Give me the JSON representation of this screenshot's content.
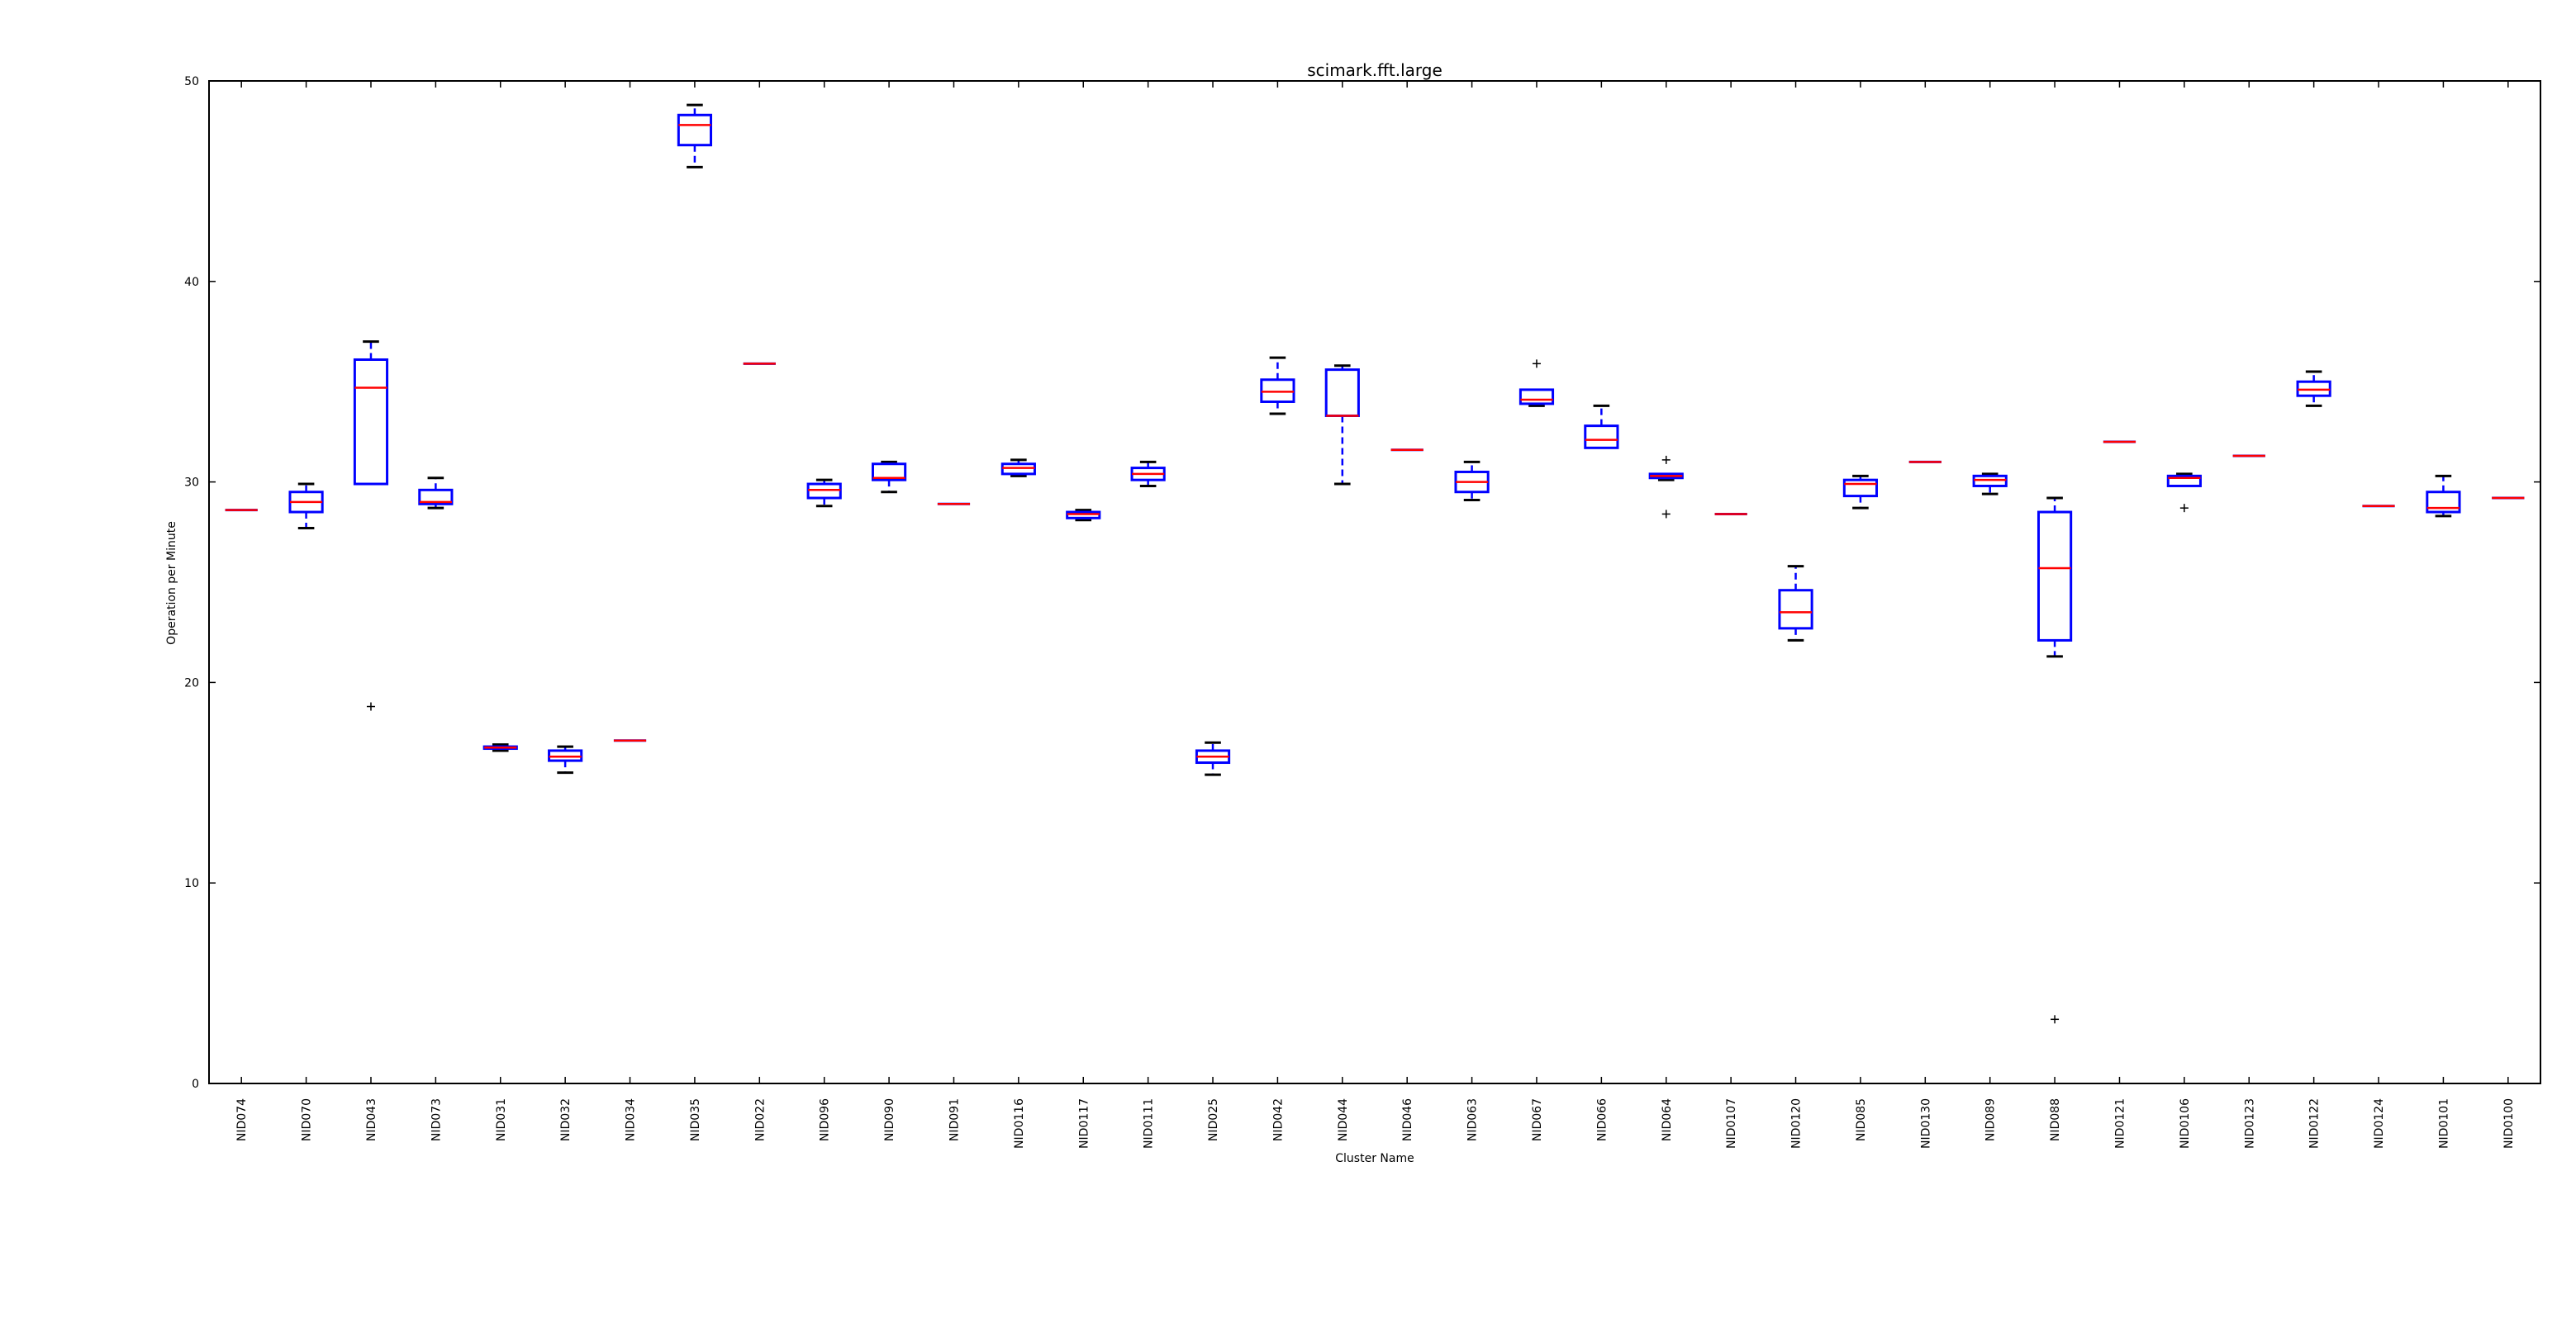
{
  "chart_data": {
    "type": "box",
    "title": "scimark.fft.large",
    "xlabel": "Cluster Name",
    "ylabel": "Operation per Minute",
    "ylim": [
      0,
      50
    ],
    "yticks": [
      0,
      10,
      20,
      30,
      40,
      50
    ],
    "grid": false,
    "colors": {
      "box": "#0000ff",
      "median": "#ff0000",
      "whisker": "#000000",
      "outlier": "#000000"
    },
    "boxes": [
      {
        "name": "NID074",
        "min": 28.6,
        "q1": 28.6,
        "median": 28.6,
        "q3": 28.6,
        "max": 28.6,
        "outliers": []
      },
      {
        "name": "NID070",
        "min": 27.7,
        "q1": 28.5,
        "median": 29.0,
        "q3": 29.5,
        "max": 29.9,
        "outliers": []
      },
      {
        "name": "NID043",
        "min": 29.9,
        "q1": 29.9,
        "median": 34.7,
        "q3": 36.1,
        "max": 37.0,
        "outliers": [
          18.8
        ]
      },
      {
        "name": "NID073",
        "min": 28.7,
        "q1": 28.9,
        "median": 29.0,
        "q3": 29.6,
        "max": 30.2,
        "outliers": []
      },
      {
        "name": "NID031",
        "min": 16.6,
        "q1": 16.7,
        "median": 16.75,
        "q3": 16.8,
        "max": 16.9,
        "outliers": []
      },
      {
        "name": "NID032",
        "min": 15.5,
        "q1": 16.1,
        "median": 16.3,
        "q3": 16.6,
        "max": 16.8,
        "outliers": []
      },
      {
        "name": "NID034",
        "min": 17.1,
        "q1": 17.1,
        "median": 17.1,
        "q3": 17.1,
        "max": 17.1,
        "outliers": []
      },
      {
        "name": "NID035",
        "min": 45.7,
        "q1": 46.8,
        "median": 47.8,
        "q3": 48.3,
        "max": 48.8,
        "outliers": []
      },
      {
        "name": "NID022",
        "min": 35.9,
        "q1": 35.9,
        "median": 35.9,
        "q3": 35.9,
        "max": 35.9,
        "outliers": []
      },
      {
        "name": "NID096",
        "min": 28.8,
        "q1": 29.2,
        "median": 29.6,
        "q3": 29.9,
        "max": 30.1,
        "outliers": []
      },
      {
        "name": "NID090",
        "min": 29.5,
        "q1": 30.1,
        "median": 30.2,
        "q3": 30.9,
        "max": 31.0,
        "outliers": []
      },
      {
        "name": "NID091",
        "min": 28.9,
        "q1": 28.9,
        "median": 28.9,
        "q3": 28.9,
        "max": 28.9,
        "outliers": []
      },
      {
        "name": "NID0116",
        "min": 30.3,
        "q1": 30.4,
        "median": 30.7,
        "q3": 30.9,
        "max": 31.1,
        "outliers": []
      },
      {
        "name": "NID0117",
        "min": 28.1,
        "q1": 28.2,
        "median": 28.4,
        "q3": 28.5,
        "max": 28.6,
        "outliers": []
      },
      {
        "name": "NID0111",
        "min": 29.8,
        "q1": 30.1,
        "median": 30.4,
        "q3": 30.7,
        "max": 31.0,
        "outliers": []
      },
      {
        "name": "NID025",
        "min": 15.4,
        "q1": 16.0,
        "median": 16.3,
        "q3": 16.6,
        "max": 17.0,
        "outliers": []
      },
      {
        "name": "NID042",
        "min": 33.4,
        "q1": 34.0,
        "median": 34.5,
        "q3": 35.1,
        "max": 36.2,
        "outliers": []
      },
      {
        "name": "NID044",
        "min": 29.9,
        "q1": 33.3,
        "median": 33.3,
        "q3": 35.6,
        "max": 35.8,
        "outliers": []
      },
      {
        "name": "NID046",
        "min": 31.6,
        "q1": 31.6,
        "median": 31.6,
        "q3": 31.6,
        "max": 31.6,
        "outliers": []
      },
      {
        "name": "NID063",
        "min": 29.1,
        "q1": 29.5,
        "median": 30.0,
        "q3": 30.5,
        "max": 31.0,
        "outliers": []
      },
      {
        "name": "NID067",
        "min": 33.8,
        "q1": 33.9,
        "median": 34.1,
        "q3": 34.6,
        "max": 34.6,
        "outliers": [
          35.9
        ]
      },
      {
        "name": "NID066",
        "min": 31.7,
        "q1": 31.7,
        "median": 32.1,
        "q3": 32.8,
        "max": 33.8,
        "outliers": []
      },
      {
        "name": "NID064",
        "min": 30.1,
        "q1": 30.2,
        "median": 30.3,
        "q3": 30.4,
        "max": 30.4,
        "outliers": [
          31.1,
          28.4
        ]
      },
      {
        "name": "NID0107",
        "min": 28.4,
        "q1": 28.4,
        "median": 28.4,
        "q3": 28.4,
        "max": 28.4,
        "outliers": []
      },
      {
        "name": "NID0120",
        "min": 22.1,
        "q1": 22.7,
        "median": 23.5,
        "q3": 24.6,
        "max": 25.8,
        "outliers": []
      },
      {
        "name": "NID085",
        "min": 28.7,
        "q1": 29.3,
        "median": 29.9,
        "q3": 30.1,
        "max": 30.3,
        "outliers": []
      },
      {
        "name": "NID0130",
        "min": 31.0,
        "q1": 31.0,
        "median": 31.0,
        "q3": 31.0,
        "max": 31.0,
        "outliers": []
      },
      {
        "name": "NID089",
        "min": 29.4,
        "q1": 29.8,
        "median": 30.1,
        "q3": 30.3,
        "max": 30.4,
        "outliers": []
      },
      {
        "name": "NID088",
        "min": 21.3,
        "q1": 22.1,
        "median": 25.7,
        "q3": 28.5,
        "max": 29.2,
        "outliers": [
          3.2
        ]
      },
      {
        "name": "NID0121",
        "min": 32.0,
        "q1": 32.0,
        "median": 32.0,
        "q3": 32.0,
        "max": 32.0,
        "outliers": []
      },
      {
        "name": "NID0106",
        "min": 29.8,
        "q1": 29.8,
        "median": 30.2,
        "q3": 30.3,
        "max": 30.4,
        "outliers": [
          28.7
        ]
      },
      {
        "name": "NID0123",
        "min": 31.3,
        "q1": 31.3,
        "median": 31.3,
        "q3": 31.3,
        "max": 31.3,
        "outliers": []
      },
      {
        "name": "NID0122",
        "min": 33.8,
        "q1": 34.3,
        "median": 34.6,
        "q3": 35.0,
        "max": 35.5,
        "outliers": []
      },
      {
        "name": "NID0124",
        "min": 28.8,
        "q1": 28.8,
        "median": 28.8,
        "q3": 28.8,
        "max": 28.8,
        "outliers": []
      },
      {
        "name": "NID0101",
        "min": 28.3,
        "q1": 28.5,
        "median": 28.7,
        "q3": 29.5,
        "max": 30.3,
        "outliers": []
      },
      {
        "name": "NID0100",
        "min": 29.2,
        "q1": 29.2,
        "median": 29.2,
        "q3": 29.2,
        "max": 29.2,
        "outliers": []
      }
    ]
  }
}
